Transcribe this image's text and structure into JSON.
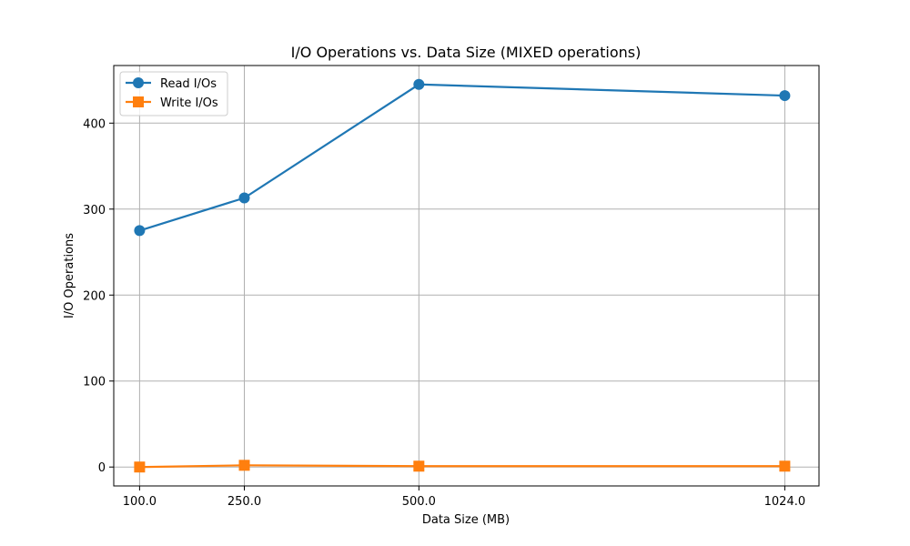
{
  "chart_data": {
    "type": "line",
    "title": "I/O Operations vs. Data Size (MIXED operations)",
    "xlabel": "Data Size (MB)",
    "ylabel": "I/O Operations",
    "x": [
      100.0,
      250.0,
      500.0,
      1024.0
    ],
    "x_tick_labels": [
      "100.0",
      "250.0",
      "500.0",
      "1024.0"
    ],
    "xlim": [
      63,
      1073
    ],
    "ylim": [
      -22,
      467
    ],
    "y_ticks": [
      0,
      100,
      200,
      300,
      400
    ],
    "grid": true,
    "legend_position": "top-left",
    "series": [
      {
        "name": "Read I/Os",
        "values": [
          275,
          313,
          445,
          432
        ],
        "color": "#1f77b4",
        "marker": "circle"
      },
      {
        "name": "Write I/Os",
        "values": [
          0,
          2,
          1,
          1
        ],
        "color": "#ff7f0e",
        "marker": "square"
      }
    ]
  }
}
